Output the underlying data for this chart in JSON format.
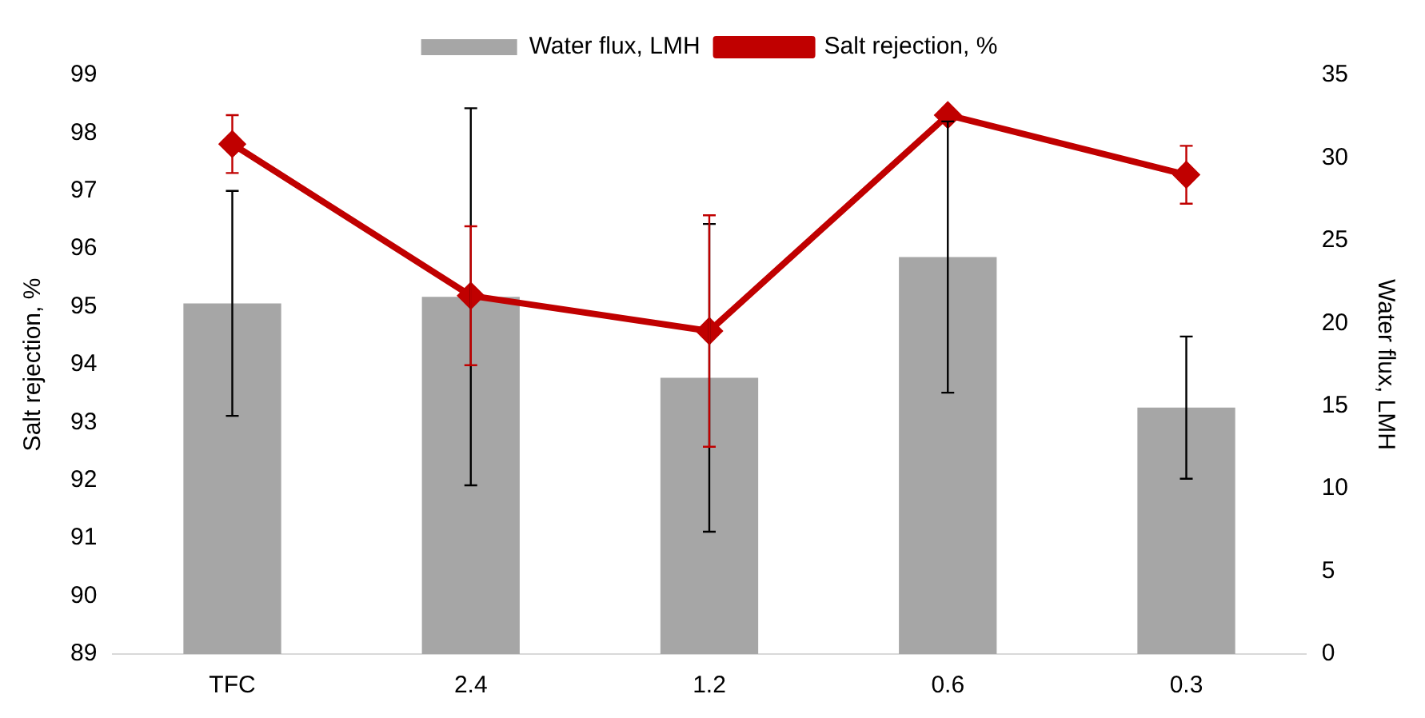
{
  "chart_data": {
    "type": "bar",
    "categories": [
      "TFC",
      "2.4",
      "1.2",
      "0.6",
      "0.3"
    ],
    "ylabel": "Salt rejection, %",
    "y2label": "Water flux, LMH",
    "ylim": [
      89,
      99
    ],
    "yticks": [
      89,
      90,
      91,
      92,
      93,
      94,
      95,
      96,
      97,
      98,
      99
    ],
    "y2lim": [
      0,
      35
    ],
    "y2ticks": [
      0,
      5,
      10,
      15,
      20,
      25,
      30,
      35
    ],
    "grid": false,
    "legend": "top",
    "series": [
      {
        "name": "Water flux, LMH",
        "axis": "y2",
        "color": "#a6a6a6",
        "values": [
          21.2,
          21.6,
          16.7,
          24.0,
          14.9
        ],
        "errors": [
          6.8,
          11.4,
          9.3,
          8.2,
          4.3
        ]
      },
      {
        "name": "Salt rejection, %",
        "type": "line",
        "color": "#c00000",
        "marker": "diamond",
        "line_style": "solid",
        "values": [
          97.81,
          95.19,
          94.58,
          98.31,
          97.28
        ],
        "errors": [
          0.5,
          1.2,
          2.0,
          null,
          0.5
        ]
      }
    ]
  }
}
